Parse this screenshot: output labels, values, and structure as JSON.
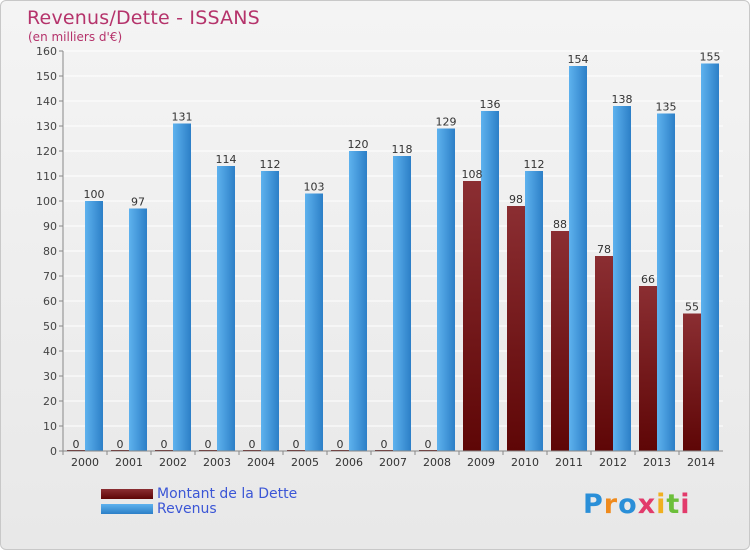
{
  "header": {
    "title": "Revenus/Dette - ISSANS",
    "subtitle": "(en milliers d'€)"
  },
  "legend": {
    "items": [
      {
        "label": "Montant de la Dette",
        "color": "#6d0f14"
      },
      {
        "label": "Revenus",
        "color": "#4aa3e6"
      }
    ]
  },
  "logo": {
    "text": "Proxiti"
  },
  "colors": {
    "debt_top": "#8b2e32",
    "debt_bottom": "#5e0606",
    "revenue_top": "#5eb2ee",
    "revenue_bottom": "#2c7fc7",
    "title": "#b5336b",
    "legend_text": "#3b56d6"
  },
  "chart_data": {
    "type": "bar",
    "title": "Revenus/Dette - ISSANS",
    "subtitle": "(en milliers d'€)",
    "categories": [
      "2000",
      "2001",
      "2002",
      "2003",
      "2004",
      "2005",
      "2006",
      "2007",
      "2008",
      "2009",
      "2010",
      "2011",
      "2012",
      "2013",
      "2014"
    ],
    "series": [
      {
        "name": "Montant de la Dette",
        "values": [
          0,
          0,
          0,
          0,
          0,
          0,
          0,
          0,
          0,
          108,
          98,
          88,
          78,
          66,
          55
        ]
      },
      {
        "name": "Revenus",
        "values": [
          100,
          97,
          131,
          114,
          112,
          103,
          120,
          118,
          129,
          136,
          112,
          154,
          138,
          135,
          155
        ]
      }
    ],
    "ylim": [
      0,
      160
    ],
    "yticks": [
      0,
      10,
      20,
      30,
      40,
      50,
      60,
      70,
      80,
      90,
      100,
      110,
      120,
      130,
      140,
      150,
      160
    ],
    "grid": true,
    "legend_position": "bottom-left"
  }
}
